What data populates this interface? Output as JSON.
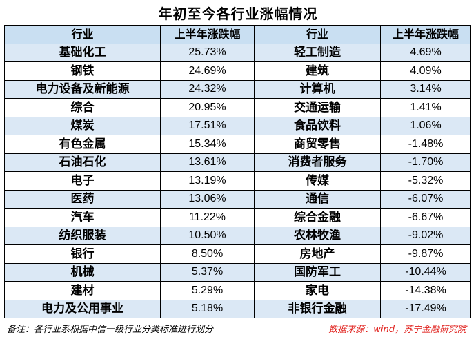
{
  "title": "年初至今各行业涨幅情况",
  "headers": [
    "行业",
    "上半年涨跌幅",
    "行业",
    "上半年涨跌幅"
  ],
  "rows": [
    {
      "left_name": "基础化工",
      "left_value": "25.73%",
      "right_name": "轻工制造",
      "right_value": "4.69%"
    },
    {
      "left_name": "钢铁",
      "left_value": "24.69%",
      "right_name": "建筑",
      "right_value": "4.09%"
    },
    {
      "left_name": "电力设备及新能源",
      "left_value": "24.32%",
      "right_name": "计算机",
      "right_value": "3.14%"
    },
    {
      "left_name": "综合",
      "left_value": "20.95%",
      "right_name": "交通运输",
      "right_value": "1.41%"
    },
    {
      "left_name": "煤炭",
      "left_value": "17.51%",
      "right_name": "食品饮料",
      "right_value": "1.06%"
    },
    {
      "left_name": "有色金属",
      "left_value": "15.34%",
      "right_name": "商贸零售",
      "right_value": "-1.48%"
    },
    {
      "left_name": "石油石化",
      "left_value": "13.61%",
      "right_name": "消费者服务",
      "right_value": "-1.70%"
    },
    {
      "left_name": "电子",
      "left_value": "13.19%",
      "right_name": "传媒",
      "right_value": "-5.32%"
    },
    {
      "left_name": "医药",
      "left_value": "13.06%",
      "right_name": "通信",
      "right_value": "-6.07%"
    },
    {
      "left_name": "汽车",
      "left_value": "11.22%",
      "right_name": "综合金融",
      "right_value": "-6.67%"
    },
    {
      "left_name": "纺织服装",
      "left_value": "10.50%",
      "right_name": "农林牧渔",
      "right_value": "-9.02%"
    },
    {
      "left_name": "银行",
      "left_value": "8.50%",
      "right_name": "房地产",
      "right_value": "-9.87%"
    },
    {
      "left_name": "机械",
      "left_value": "5.37%",
      "right_name": "国防军工",
      "right_value": "-10.44%"
    },
    {
      "left_name": "建材",
      "left_value": "5.29%",
      "right_name": "家电",
      "right_value": "-14.38%"
    },
    {
      "left_name": "电力及公用事业",
      "left_value": "5.18%",
      "right_name": "非银行金融",
      "right_value": "-17.49%"
    }
  ],
  "note": "备注：各行业系根据中信一级行业分类标准进行划分",
  "source": "数据来源：wind，苏宁金融研究院",
  "colors": {
    "header_bg": "#c9dff2",
    "alt_row_bg": "#dbe8f5",
    "source_text": "#e0201c"
  }
}
